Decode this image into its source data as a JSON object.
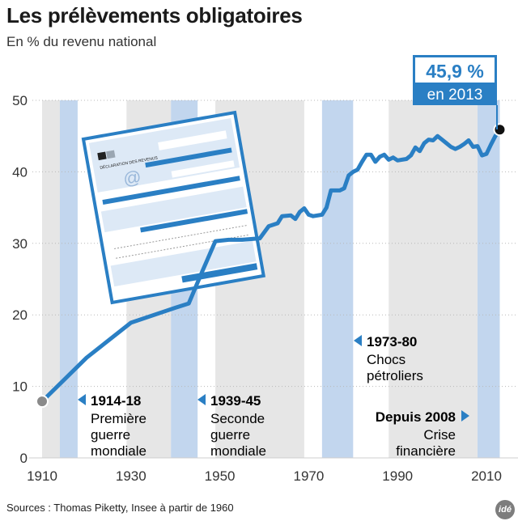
{
  "title": "Les prélèvements obligatoires",
  "subtitle": "En % du revenu national",
  "source": "Sources : Thomas Piketty, Insee à partir de 1960",
  "logo": "idé",
  "colors": {
    "line": "#2a7fc4",
    "band_grey": "#e6e6e6",
    "band_blue": "#c2d6ee",
    "callout_bg": "#2a7fc4",
    "arrow": "#2a7fc4"
  },
  "callout": {
    "value": "45,9 %",
    "year": "en 2013"
  },
  "form_illustration": {
    "icon": "tax-return-form-illustration",
    "caption": "DÉCLARATION DES REVENUS"
  },
  "annotations": [
    {
      "id": "ww1",
      "label": "1914-18",
      "lines": [
        "Première",
        "guerre",
        "mondiale"
      ],
      "arrow": "left"
    },
    {
      "id": "ww2",
      "label": "1939-45",
      "lines": [
        "Seconde",
        "guerre",
        "mondiale"
      ],
      "arrow": "left"
    },
    {
      "id": "oil",
      "label": "1973-80",
      "lines": [
        "Chocs",
        "pétroliers"
      ],
      "arrow": "left"
    },
    {
      "id": "crisis",
      "label": "Depuis 2008",
      "lines": [
        "Crise",
        "financière"
      ],
      "arrow": "right"
    }
  ],
  "chart_data": {
    "type": "line",
    "title": "Les prélèvements obligatoires",
    "subtitle": "En % du revenu national",
    "xlim": [
      1910,
      2013
    ],
    "ylim": [
      0,
      50
    ],
    "x_ticks": [
      1910,
      1930,
      1950,
      1970,
      1990,
      2010
    ],
    "y_ticks": [
      0,
      10,
      20,
      30,
      40,
      50
    ],
    "grid": "horizontal dotted",
    "bands": [
      {
        "from": 1910,
        "to": 1914,
        "shade": "grey"
      },
      {
        "from": 1914,
        "to": 1918,
        "shade": "blue"
      },
      {
        "from": 1918,
        "to": 1929,
        "shade": "none"
      },
      {
        "from": 1929,
        "to": 1939,
        "shade": "grey"
      },
      {
        "from": 1939,
        "to": 1945,
        "shade": "blue"
      },
      {
        "from": 1945,
        "to": 1949,
        "shade": "none"
      },
      {
        "from": 1949,
        "to": 1969,
        "shade": "grey"
      },
      {
        "from": 1969,
        "to": 1973,
        "shade": "none"
      },
      {
        "from": 1973,
        "to": 1980,
        "shade": "blue"
      },
      {
        "from": 1980,
        "to": 1988,
        "shade": "none"
      },
      {
        "from": 1988,
        "to": 2008,
        "shade": "grey"
      },
      {
        "from": 2008,
        "to": 2013,
        "shade": "blue"
      }
    ],
    "series": [
      {
        "x": [
          1910,
          1920,
          1930,
          1940,
          1943,
          1946,
          1949,
          1952,
          1955,
          1959,
          1961,
          1963,
          1964,
          1966,
          1967,
          1968,
          1969,
          1970,
          1971,
          1973,
          1974,
          1975,
          1977,
          1978,
          1979,
          1980,
          1981,
          1982,
          1983,
          1984,
          1985,
          1986,
          1987,
          1988,
          1989,
          1990,
          1991,
          1992,
          1993,
          1994,
          1995,
          1996,
          1997,
          1998,
          1999,
          2000,
          2001,
          2002,
          2003,
          2004,
          2005,
          2006,
          2007,
          2008,
          2009,
          2010,
          2011,
          2012,
          2013
        ],
        "y": [
          7.9,
          14.0,
          18.9,
          21.0,
          21.6,
          26.0,
          30.3,
          30.5,
          30.5,
          30.7,
          32.4,
          32.8,
          33.8,
          33.9,
          33.4,
          34.4,
          34.9,
          34.0,
          33.8,
          34.0,
          35.0,
          37.4,
          37.4,
          37.7,
          39.5,
          40.0,
          40.3,
          41.4,
          42.4,
          42.4,
          41.4,
          42.1,
          42.4,
          41.7,
          42.0,
          41.6,
          41.7,
          41.8,
          42.3,
          43.4,
          42.9,
          44.0,
          44.5,
          44.4,
          45.0,
          44.5,
          44.0,
          43.5,
          43.2,
          43.5,
          43.9,
          44.4,
          43.5,
          43.6,
          42.3,
          42.5,
          43.8,
          45.0,
          45.9
        ]
      }
    ]
  }
}
